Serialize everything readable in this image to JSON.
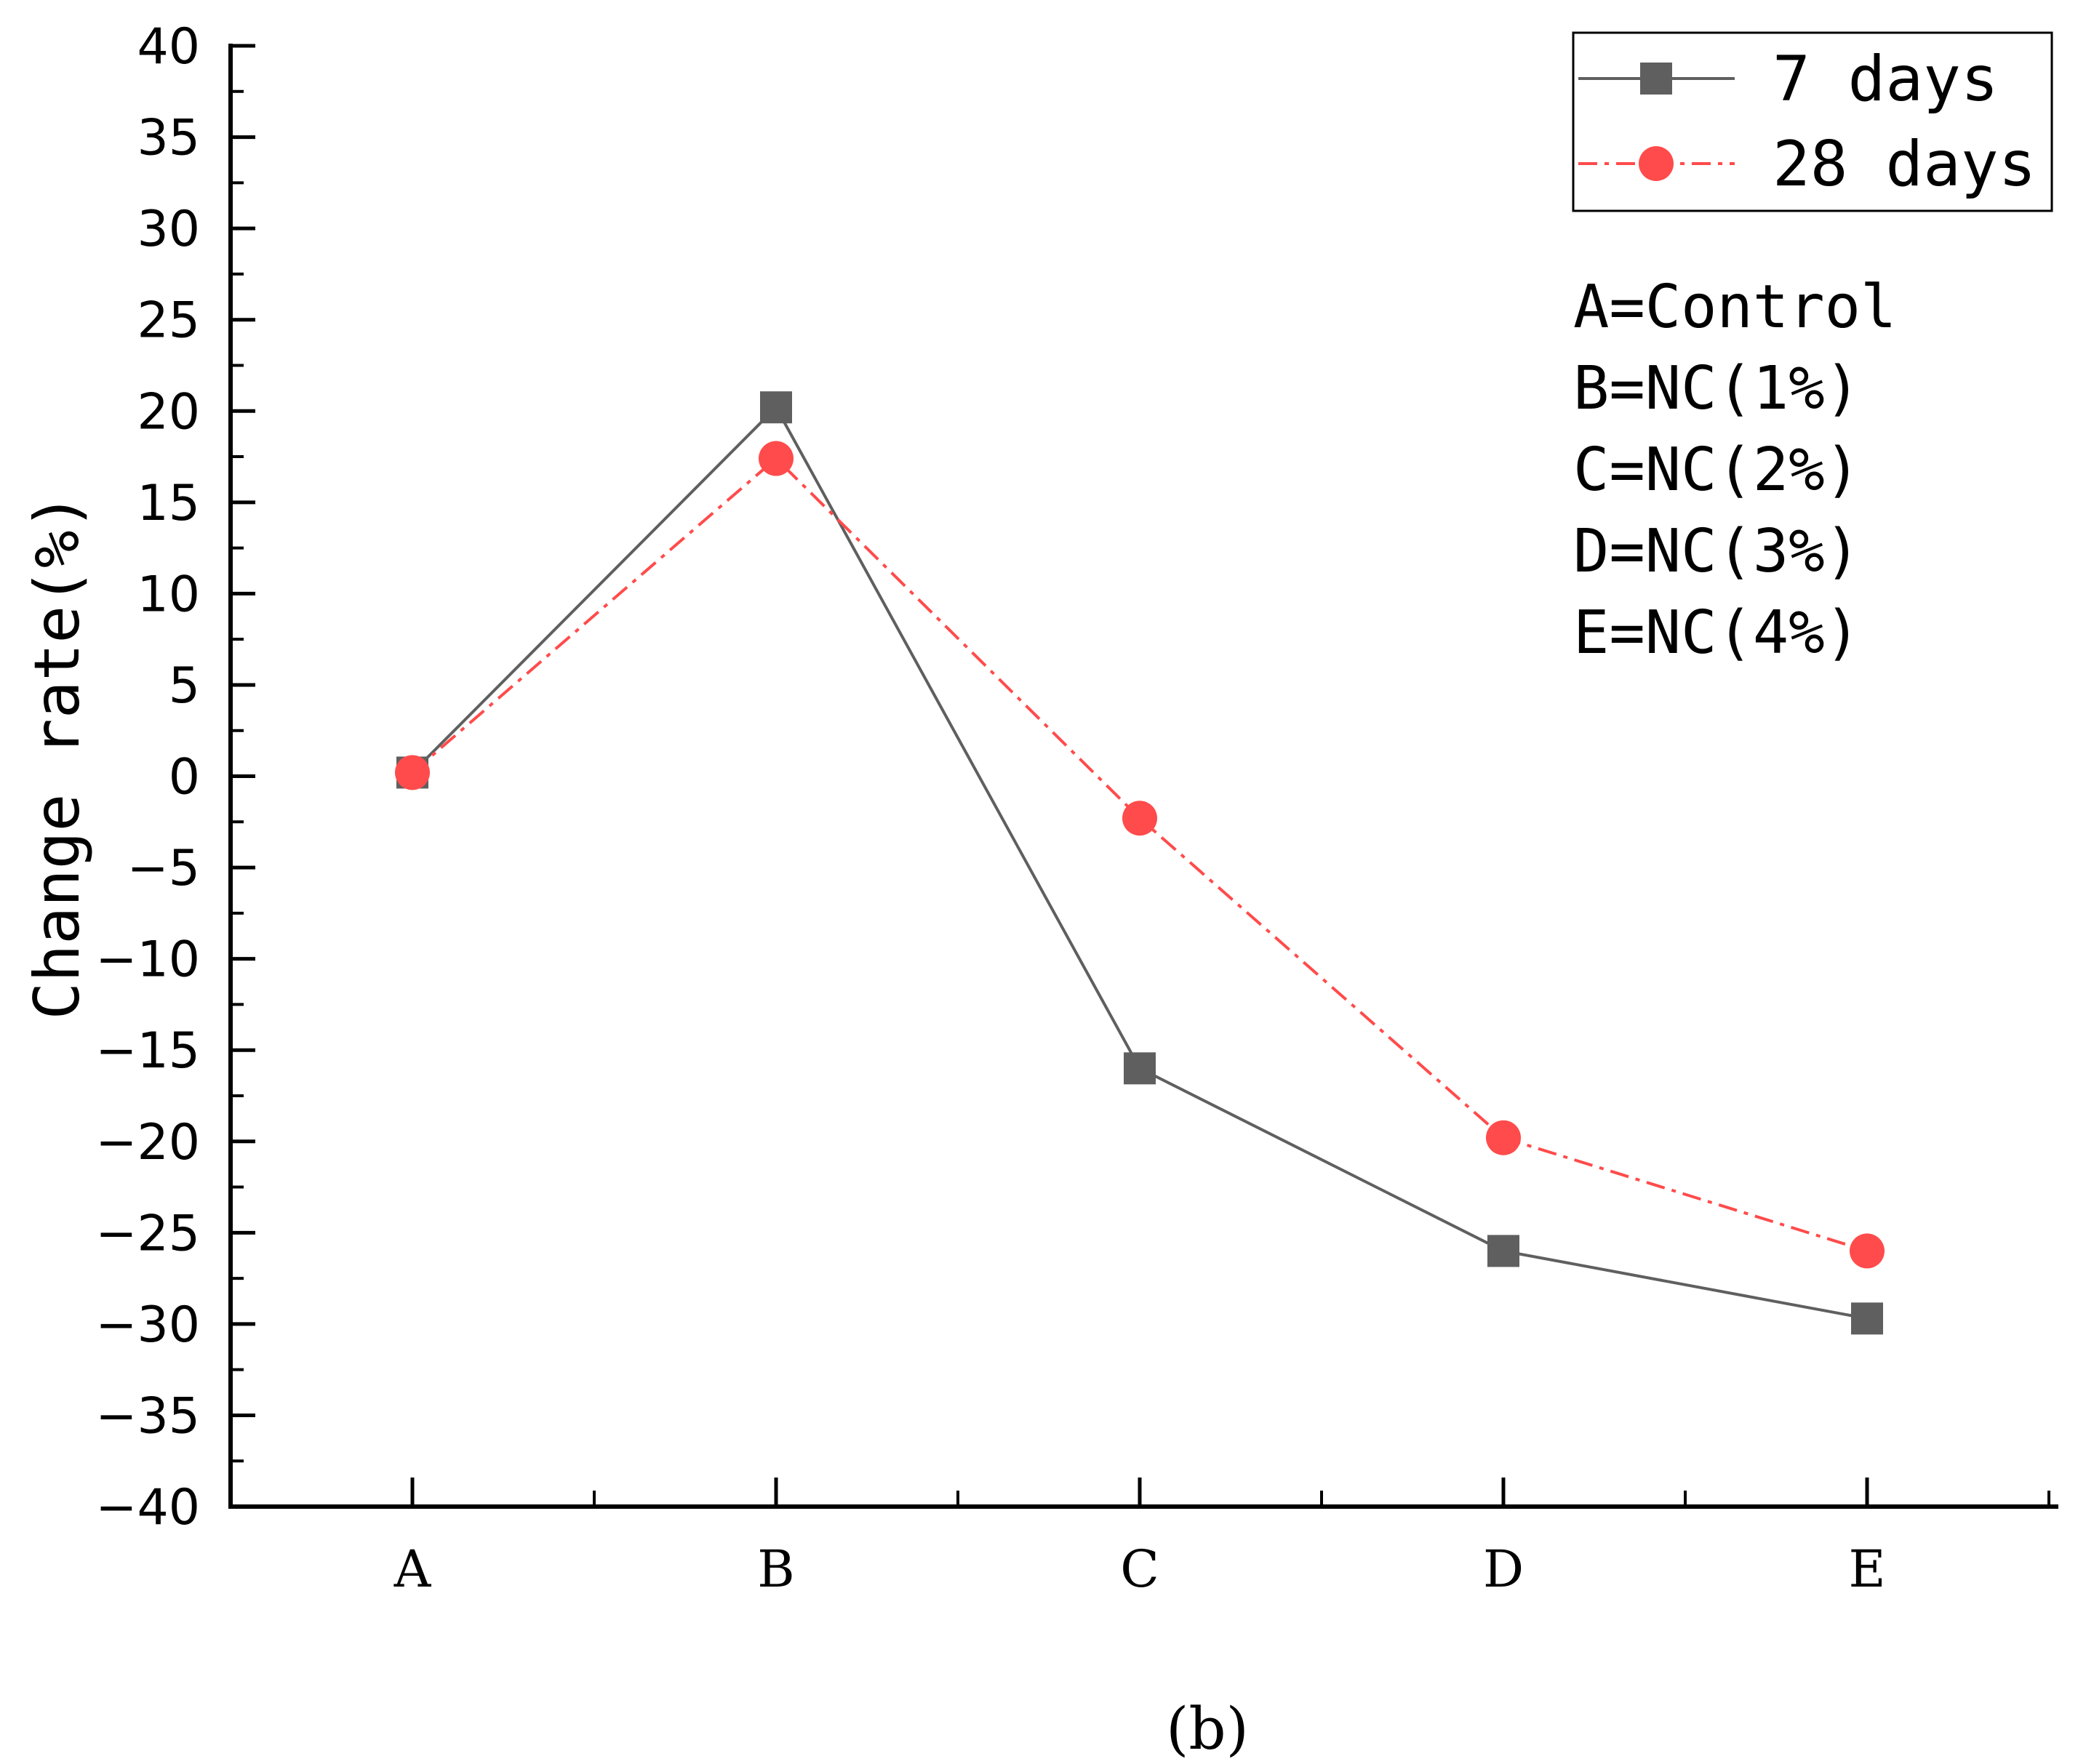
{
  "chart_data": {
    "type": "line",
    "title": "",
    "xlabel": "",
    "ylabel": "Change rate(%)",
    "categories": [
      "A",
      "B",
      "C",
      "D",
      "E"
    ],
    "ylim": [
      -40,
      40
    ],
    "yticks": [
      40,
      35,
      30,
      25,
      20,
      15,
      10,
      5,
      0,
      -5,
      -10,
      -15,
      -20,
      -25,
      -30,
      -35,
      -40
    ],
    "series": [
      {
        "name": "7 days",
        "values": [
          0.2,
          20.2,
          -16,
          -26,
          -29.7
        ],
        "color": "#5f5f5f",
        "marker": "square",
        "line": "solid"
      },
      {
        "name": "28 days",
        "values": [
          0.2,
          17.4,
          -2.3,
          -19.8,
          -26
        ],
        "color": "#ff4b4b",
        "marker": "circle",
        "line": "dash-dot"
      }
    ],
    "legend": {
      "position": "top-right",
      "entries": [
        "7 days",
        "28 days"
      ]
    },
    "annotations": [
      "A=Control",
      "B=NC(1%)",
      "C=NC(2%)",
      "D=NC(3%)",
      "E=NC(4%)"
    ],
    "caption": "(b)",
    "grid": false
  }
}
